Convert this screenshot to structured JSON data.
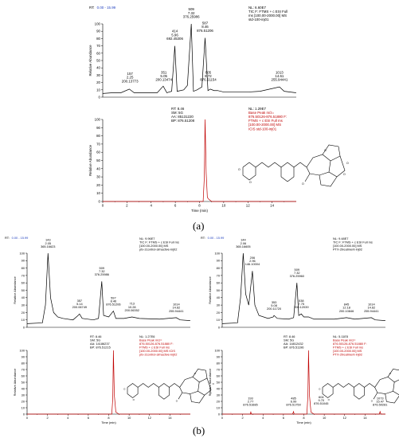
{
  "figure_labels": {
    "a": "(a)",
    "b": "(b)"
  },
  "chart_data": [
    {
      "id": "a-top",
      "type": "line",
      "rt_label": "RT:",
      "rt_range": "0.00 - 15.99",
      "header": [
        "NL: 6.60E7",
        "TIC F: FTMS + c ESI Full",
        "ms [100.00-2000.00] MS",
        "std-100-inj01"
      ],
      "header_color": "#000000",
      "ylabel": "Relative Abundance",
      "yticks": [
        "0",
        "10",
        "20",
        "30",
        "40",
        "50",
        "60",
        "70",
        "80",
        "90",
        "100"
      ],
      "xlim": [
        0,
        16
      ],
      "ylim": [
        0,
        100
      ],
      "series": [
        {
          "color": "#000000",
          "points": [
            [
              0,
              5
            ],
            [
              0.8,
              6
            ],
            [
              1.5,
              6
            ],
            [
              2.2,
              11
            ],
            [
              2.6,
              6
            ],
            [
              3.5,
              6
            ],
            [
              4.5,
              6
            ],
            [
              5.0,
              15
            ],
            [
              5.3,
              6
            ],
            [
              5.7,
              8
            ],
            [
              5.96,
              70
            ],
            [
              6.15,
              8
            ],
            [
              6.7,
              10
            ],
            [
              7.0,
              16
            ],
            [
              7.32,
              100
            ],
            [
              7.5,
              8
            ],
            [
              7.8,
              10
            ],
            [
              8.2,
              14
            ],
            [
              8.46,
              81
            ],
            [
              8.7,
              9
            ],
            [
              8.9,
              11
            ],
            [
              9.2,
              9
            ],
            [
              9.5,
              9
            ],
            [
              10,
              7
            ],
            [
              11,
              7
            ],
            [
              12,
              7
            ],
            [
              13,
              8
            ],
            [
              14.61,
              14
            ],
            [
              15,
              8
            ],
            [
              15.99,
              6
            ]
          ]
        }
      ],
      "peaks": [
        {
          "x": 2.25,
          "y": 12,
          "lines": [
            "157",
            "2.25",
            "200.13773"
          ]
        },
        {
          "x": 5.05,
          "y": 14,
          "lines": [
            "351",
            "5.05",
            "200.13474"
          ]
        },
        {
          "x": 5.96,
          "y": 70,
          "lines": [
            "414",
            "5.96",
            "692.45306"
          ]
        },
        {
          "x": 7.32,
          "y": 100,
          "lines": [
            "509",
            "7.32",
            "376.25986"
          ]
        },
        {
          "x": 8.46,
          "y": 81,
          "lines": [
            "587",
            "8.46",
            "876.51206"
          ]
        },
        {
          "x": 8.72,
          "y": 14,
          "lines": [
            "605",
            "8.72",
            "876.51154"
          ]
        },
        {
          "x": 14.61,
          "y": 14,
          "lines": [
            "1013",
            "14.61",
            "255.94441"
          ]
        }
      ]
    },
    {
      "id": "a-bottom",
      "type": "line",
      "scan_info": [
        "RT: 8.46",
        "SM: 5G",
        "AA: 85131220",
        "BP: 876.51208"
      ],
      "header": [
        "NL: 1.29E7",
        "Base Peak m/z=",
        "876.50126-876.51880 F:",
        "FTMS + c ESI Full ms",
        "[100.00-2000.00] MS",
        "ICIS std-100-inj01"
      ],
      "header_color": "#c00000",
      "ylabel": "Relative Abundance",
      "xlabel": "Time (min)",
      "yticks": [
        "0",
        "10",
        "20",
        "30",
        "40",
        "50",
        "60",
        "70",
        "80",
        "90",
        "100"
      ],
      "xticks": [
        "0",
        "2",
        "4",
        "6",
        "8",
        "10",
        "12",
        "14"
      ],
      "xlim": [
        0,
        16
      ],
      "ylim": [
        0,
        100
      ],
      "series": [
        {
          "color": "#c00000",
          "points": [
            [
              0,
              0
            ],
            [
              8.3,
              0
            ],
            [
              8.4,
              30
            ],
            [
              8.46,
              100
            ],
            [
              8.55,
              35
            ],
            [
              8.65,
              5
            ],
            [
              8.75,
              3
            ],
            [
              9.0,
              0
            ],
            [
              16,
              0
            ]
          ]
        }
      ]
    },
    {
      "id": "b-left-top",
      "type": "line",
      "rt_label": "RT:",
      "rt_range": "0.00 - 15.99",
      "header": [
        "NL: 9.96E7",
        "TIC F: FTMS + c ESI Full ms",
        "[100.00-2000.00] MS",
        "ptx-2control-slmactive-inj02"
      ],
      "header_color": "#000000",
      "ylabel": "Relative Abundance",
      "yticks": [
        "0",
        "10",
        "20",
        "30",
        "40",
        "50",
        "60",
        "70",
        "80",
        "90",
        "100"
      ],
      "xlim": [
        0,
        16
      ],
      "ylim": [
        0,
        100
      ],
      "series": [
        {
          "color": "#000000",
          "points": [
            [
              0,
              5
            ],
            [
              1.5,
              6
            ],
            [
              1.8,
              30
            ],
            [
              2.05,
              100
            ],
            [
              2.3,
              40
            ],
            [
              2.6,
              20
            ],
            [
              3.0,
              14
            ],
            [
              3.5,
              12
            ],
            [
              4.5,
              10
            ],
            [
              5.0,
              16
            ],
            [
              5.14,
              18
            ],
            [
              5.4,
              12
            ],
            [
              6.5,
              10
            ],
            [
              7.0,
              12
            ],
            [
              7.32,
              62
            ],
            [
              7.5,
              16
            ],
            [
              8.0,
              14
            ],
            [
              8.46,
              22
            ],
            [
              8.7,
              12
            ],
            [
              9.5,
              12
            ],
            [
              10.28,
              14
            ],
            [
              11,
              12
            ],
            [
              13,
              11
            ],
            [
              14.62,
              13
            ],
            [
              15,
              10
            ],
            [
              15.99,
              9
            ]
          ]
        }
      ],
      "peaks": [
        {
          "x": 2.05,
          "y": 100,
          "lines": [
            "143",
            "2.05",
            "365.16623"
          ]
        },
        {
          "x": 5.14,
          "y": 18,
          "lines": [
            "357",
            "5.14",
            "200.06749"
          ]
        },
        {
          "x": 7.32,
          "y": 62,
          "lines": [
            "509",
            "7.32",
            "376.25986"
          ]
        },
        {
          "x": 8.46,
          "y": 22,
          "lines": [
            "597",
            "8.46",
            "876.51206"
          ]
        },
        {
          "x": 10.28,
          "y": 14,
          "lines": [
            "713",
            "10.28",
            "200.06352"
          ]
        },
        {
          "x": 14.62,
          "y": 13,
          "lines": [
            "1014",
            "14.62",
            "255.94441"
          ]
        }
      ]
    },
    {
      "id": "b-left-bottom",
      "type": "line",
      "scan_info": [
        "RT: 8.46",
        "SM: 5G",
        "AA: 14186237",
        "BP: 876.51215"
      ],
      "header": [
        "NL: 1.27E6",
        "Base Peak m/z=",
        "876.50126-876.51880 F:",
        "FTMS + c ESI Full ms",
        "[100.00-2000.00] MS ICIS",
        "ptx-2control-slmactive-inj02"
      ],
      "header_color": "#c00000",
      "ylabel": "Relative Abundance",
      "xlabel": "Time (min)",
      "yticks": [
        "0",
        "10",
        "20",
        "30",
        "40",
        "50",
        "60",
        "70",
        "80",
        "90",
        "100"
      ],
      "xticks": [
        "0",
        "2",
        "4",
        "6",
        "8",
        "10",
        "12",
        "14"
      ],
      "xlim": [
        0,
        16
      ],
      "ylim": [
        0,
        100
      ],
      "series": [
        {
          "color": "#c00000",
          "points": [
            [
              0,
              0
            ],
            [
              8.3,
              0
            ],
            [
              8.4,
              25
            ],
            [
              8.46,
              100
            ],
            [
              8.55,
              30
            ],
            [
              8.7,
              3
            ],
            [
              9.0,
              0
            ],
            [
              16,
              0
            ]
          ]
        }
      ]
    },
    {
      "id": "b-right-top",
      "type": "line",
      "rt_label": "RT:",
      "rt_range": "0.00 - 15.99",
      "header": [
        "NL: 9.48E7",
        "TIC F: FTMS + c ESI Full ms",
        "[100.00-2000.00] MS",
        "PTX-2treatment-inj02"
      ],
      "header_color": "#000000",
      "ylabel": "Relative Abundance",
      "yticks": [
        "0",
        "10",
        "20",
        "30",
        "40",
        "50",
        "60",
        "70",
        "80",
        "90",
        "100"
      ],
      "xlim": [
        0,
        16
      ],
      "ylim": [
        0,
        100
      ],
      "series": [
        {
          "color": "#000000",
          "points": [
            [
              0,
              5
            ],
            [
              1.5,
              6
            ],
            [
              1.8,
              40
            ],
            [
              2.06,
              100
            ],
            [
              2.3,
              45
            ],
            [
              2.6,
              30
            ],
            [
              2.96,
              76
            ],
            [
              3.2,
              30
            ],
            [
              3.6,
              16
            ],
            [
              4.5,
              12
            ],
            [
              5.0,
              14
            ],
            [
              5.08,
              16
            ],
            [
              5.4,
              12
            ],
            [
              6.5,
              11
            ],
            [
              7.0,
              13
            ],
            [
              7.32,
              60
            ],
            [
              7.5,
              16
            ],
            [
              7.75,
              18
            ],
            [
              8.0,
              14
            ],
            [
              8.46,
              14
            ],
            [
              9.0,
              11
            ],
            [
              11,
              11
            ],
            [
              12.18,
              13
            ],
            [
              13,
              11
            ],
            [
              14.62,
              13
            ],
            [
              15,
              10
            ],
            [
              15.99,
              9
            ]
          ]
        }
      ],
      "peaks": [
        {
          "x": 2.06,
          "y": 100,
          "lines": [
            "144",
            "2.06",
            "365.16605"
          ]
        },
        {
          "x": 2.96,
          "y": 76,
          "lines": [
            "206",
            "2.96",
            "146.10004"
          ]
        },
        {
          "x": 5.08,
          "y": 16,
          "lines": [
            "353",
            "5.08",
            "200.11720"
          ]
        },
        {
          "x": 7.32,
          "y": 60,
          "lines": [
            "509",
            "7.32",
            "376.25960"
          ]
        },
        {
          "x": 7.75,
          "y": 18,
          "lines": [
            "538",
            "7.75",
            "200.12039"
          ]
        },
        {
          "x": 12.18,
          "y": 13,
          "lines": [
            "845",
            "12.18",
            "200.10846"
          ]
        },
        {
          "x": 14.62,
          "y": 13,
          "lines": [
            "1014",
            "14.62",
            "255.94441"
          ]
        }
      ]
    },
    {
      "id": "b-right-bottom",
      "type": "line",
      "scan_info": [
        "RT: 8.46",
        "SM: 5G",
        "AA: 14812432",
        "BP: 876.51196"
      ],
      "header": [
        "NL: 5.11E5",
        "Base Peak m/z=",
        "876.50126-876.51880 F:",
        "FTMS + c ESI Full ms",
        "[100.00-2000.00] MS",
        "PTX-2treatment-inj02"
      ],
      "header_color": "#c00000",
      "ylabel": "Relative Abundance",
      "xlabel": "Time (min)",
      "yticks": [
        "0",
        "10",
        "20",
        "30",
        "40",
        "50",
        "60",
        "70",
        "80",
        "90",
        "100"
      ],
      "xticks": [
        "0",
        "2",
        "4",
        "6",
        "8",
        "10",
        "12",
        "14"
      ],
      "xlim": [
        0,
        16
      ],
      "ylim": [
        0,
        100
      ],
      "series": [
        {
          "color": "#c00000",
          "points": [
            [
              0,
              0
            ],
            [
              2.77,
              0
            ],
            [
              2.8,
              4
            ],
            [
              2.85,
              0
            ],
            [
              6.9,
              0
            ],
            [
              6.99,
              4
            ],
            [
              7.05,
              0
            ],
            [
              8.3,
              0
            ],
            [
              8.4,
              30
            ],
            [
              8.46,
              100
            ],
            [
              8.55,
              30
            ],
            [
              8.7,
              3
            ],
            [
              9.0,
              0
            ],
            [
              15.4,
              0
            ],
            [
              15.47,
              4
            ],
            [
              15.55,
              0
            ],
            [
              16,
              0
            ]
          ]
        }
      ],
      "peaks": [
        {
          "x": 2.77,
          "y": 4,
          "lines": [
            "193",
            "2.77",
            "876.51685"
          ]
        },
        {
          "x": 6.99,
          "y": 4,
          "lines": [
            "485",
            "6.99",
            "876.51750"
          ]
        },
        {
          "x": 9.7,
          "y": 6,
          "lines": [
            "604",
            "9.70",
            "876.51045"
          ]
        },
        {
          "x": 15.47,
          "y": 4,
          "lines": [
            "1073",
            "15.47",
            "876.50281"
          ]
        }
      ]
    }
  ]
}
